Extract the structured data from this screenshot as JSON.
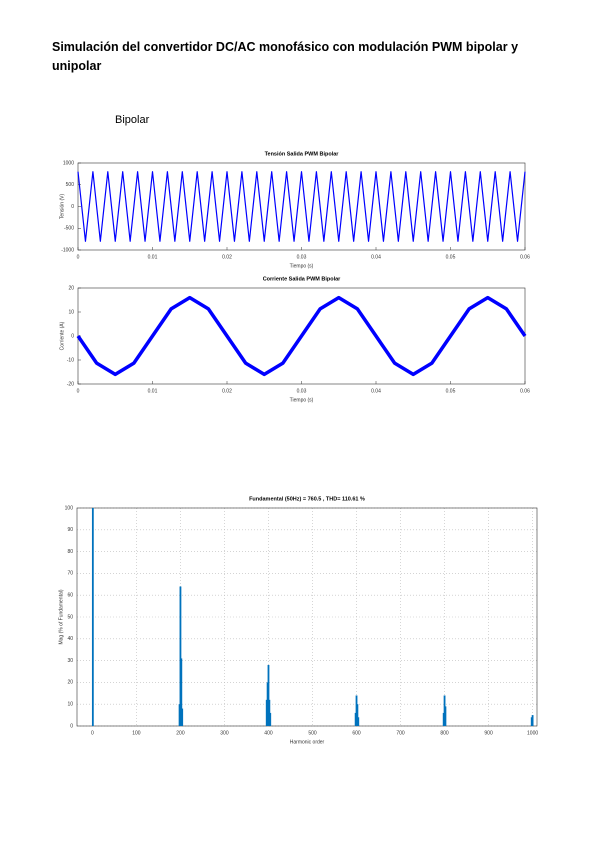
{
  "document": {
    "title": "Simulación del convertidor DC/AC monofásico con modulación PWM bipolar y unipolar",
    "section": "Bipolar"
  },
  "chart_data": [
    {
      "type": "line",
      "title": "Tensión Salida PWM Bipolar",
      "x_label": "Tiempo (s)",
      "y_label": "Tensión (V)",
      "color": "#0000ff",
      "grid": false,
      "xlim": [
        0,
        0.06
      ],
      "ylim": [
        -1000,
        1000
      ],
      "xticks": [
        0,
        0.01,
        0.02,
        0.03,
        0.04,
        0.05,
        0.06
      ],
      "yticks": [
        -1000,
        -500,
        0,
        500,
        1000
      ],
      "x": [
        0,
        0.001,
        0.002,
        0.003,
        0.004,
        0.005,
        0.006,
        0.007,
        0.008,
        0.009,
        0.01,
        0.011,
        0.012,
        0.013,
        0.014,
        0.015,
        0.016,
        0.017,
        0.018,
        0.019,
        0.02,
        0.021,
        0.022,
        0.023,
        0.024,
        0.025,
        0.026,
        0.027,
        0.028,
        0.029,
        0.03,
        0.031,
        0.032,
        0.033,
        0.034,
        0.035,
        0.036,
        0.037,
        0.038,
        0.039,
        0.04,
        0.041,
        0.042,
        0.043,
        0.044,
        0.045,
        0.046,
        0.047,
        0.048,
        0.049,
        0.05,
        0.051,
        0.052,
        0.053,
        0.054,
        0.055,
        0.056,
        0.057,
        0.058,
        0.059,
        0.06
      ],
      "values": [
        800,
        -800,
        800,
        -800,
        800,
        -800,
        800,
        -800,
        800,
        -800,
        800,
        -800,
        800,
        -800,
        800,
        -800,
        800,
        -800,
        800,
        -800,
        800,
        -800,
        800,
        -800,
        800,
        -800,
        800,
        -800,
        800,
        -800,
        800,
        -800,
        800,
        -800,
        800,
        -800,
        800,
        -800,
        800,
        -800,
        800,
        -800,
        800,
        -800,
        800,
        -800,
        800,
        -800,
        800,
        -800,
        800,
        -800,
        800,
        -800,
        800,
        -800,
        800,
        -800,
        800,
        -800,
        800
      ]
    },
    {
      "type": "line",
      "title": "Corriente Salida PWM Bipolar",
      "x_label": "Tiempo (s)",
      "y_label": "Corriente (A)",
      "color": "#0000ff",
      "grid": false,
      "xlim": [
        0,
        0.06
      ],
      "ylim": [
        -20,
        20
      ],
      "xticks": [
        0,
        0.01,
        0.02,
        0.03,
        0.04,
        0.05,
        0.06
      ],
      "yticks": [
        -20,
        -10,
        0,
        10,
        20
      ],
      "x": [
        0,
        0.0025,
        0.005,
        0.0075,
        0.01,
        0.0125,
        0.015,
        0.0175,
        0.02,
        0.0225,
        0.025,
        0.0275,
        0.03,
        0.0325,
        0.035,
        0.0375,
        0.04,
        0.0425,
        0.045,
        0.0475,
        0.05,
        0.0525,
        0.055,
        0.0575,
        0.06
      ],
      "values": [
        0,
        -11.3,
        -16,
        -11.3,
        0,
        11.3,
        16,
        11.3,
        0,
        -11.3,
        -16,
        -11.3,
        0,
        11.3,
        16,
        11.3,
        0,
        -11.3,
        -16,
        -11.3,
        0,
        11.3,
        16,
        11.3,
        0
      ]
    },
    {
      "type": "bar",
      "title": "Fundamental (50Hz) = 760.5 , THD= 110.61 %",
      "x_label": "Harmonic order",
      "y_label": "Mag (% of Fundamental)",
      "color": "#0072bd",
      "grid": true,
      "xlim": [
        -35,
        1010
      ],
      "ylim": [
        0,
        100
      ],
      "xticks": [
        0,
        100,
        200,
        300,
        400,
        500,
        600,
        700,
        800,
        900,
        1000
      ],
      "yticks": [
        0,
        10,
        20,
        30,
        40,
        50,
        60,
        70,
        80,
        90,
        100
      ],
      "x": [
        1,
        198,
        200,
        202,
        204,
        396,
        398,
        400,
        402,
        404,
        598,
        600,
        602,
        604,
        798,
        800,
        802,
        998,
        1000
      ],
      "values": [
        100,
        10,
        64,
        31,
        8,
        12,
        20,
        28,
        12,
        6,
        6,
        14,
        10,
        4,
        6,
        14,
        9,
        4,
        5
      ]
    }
  ]
}
